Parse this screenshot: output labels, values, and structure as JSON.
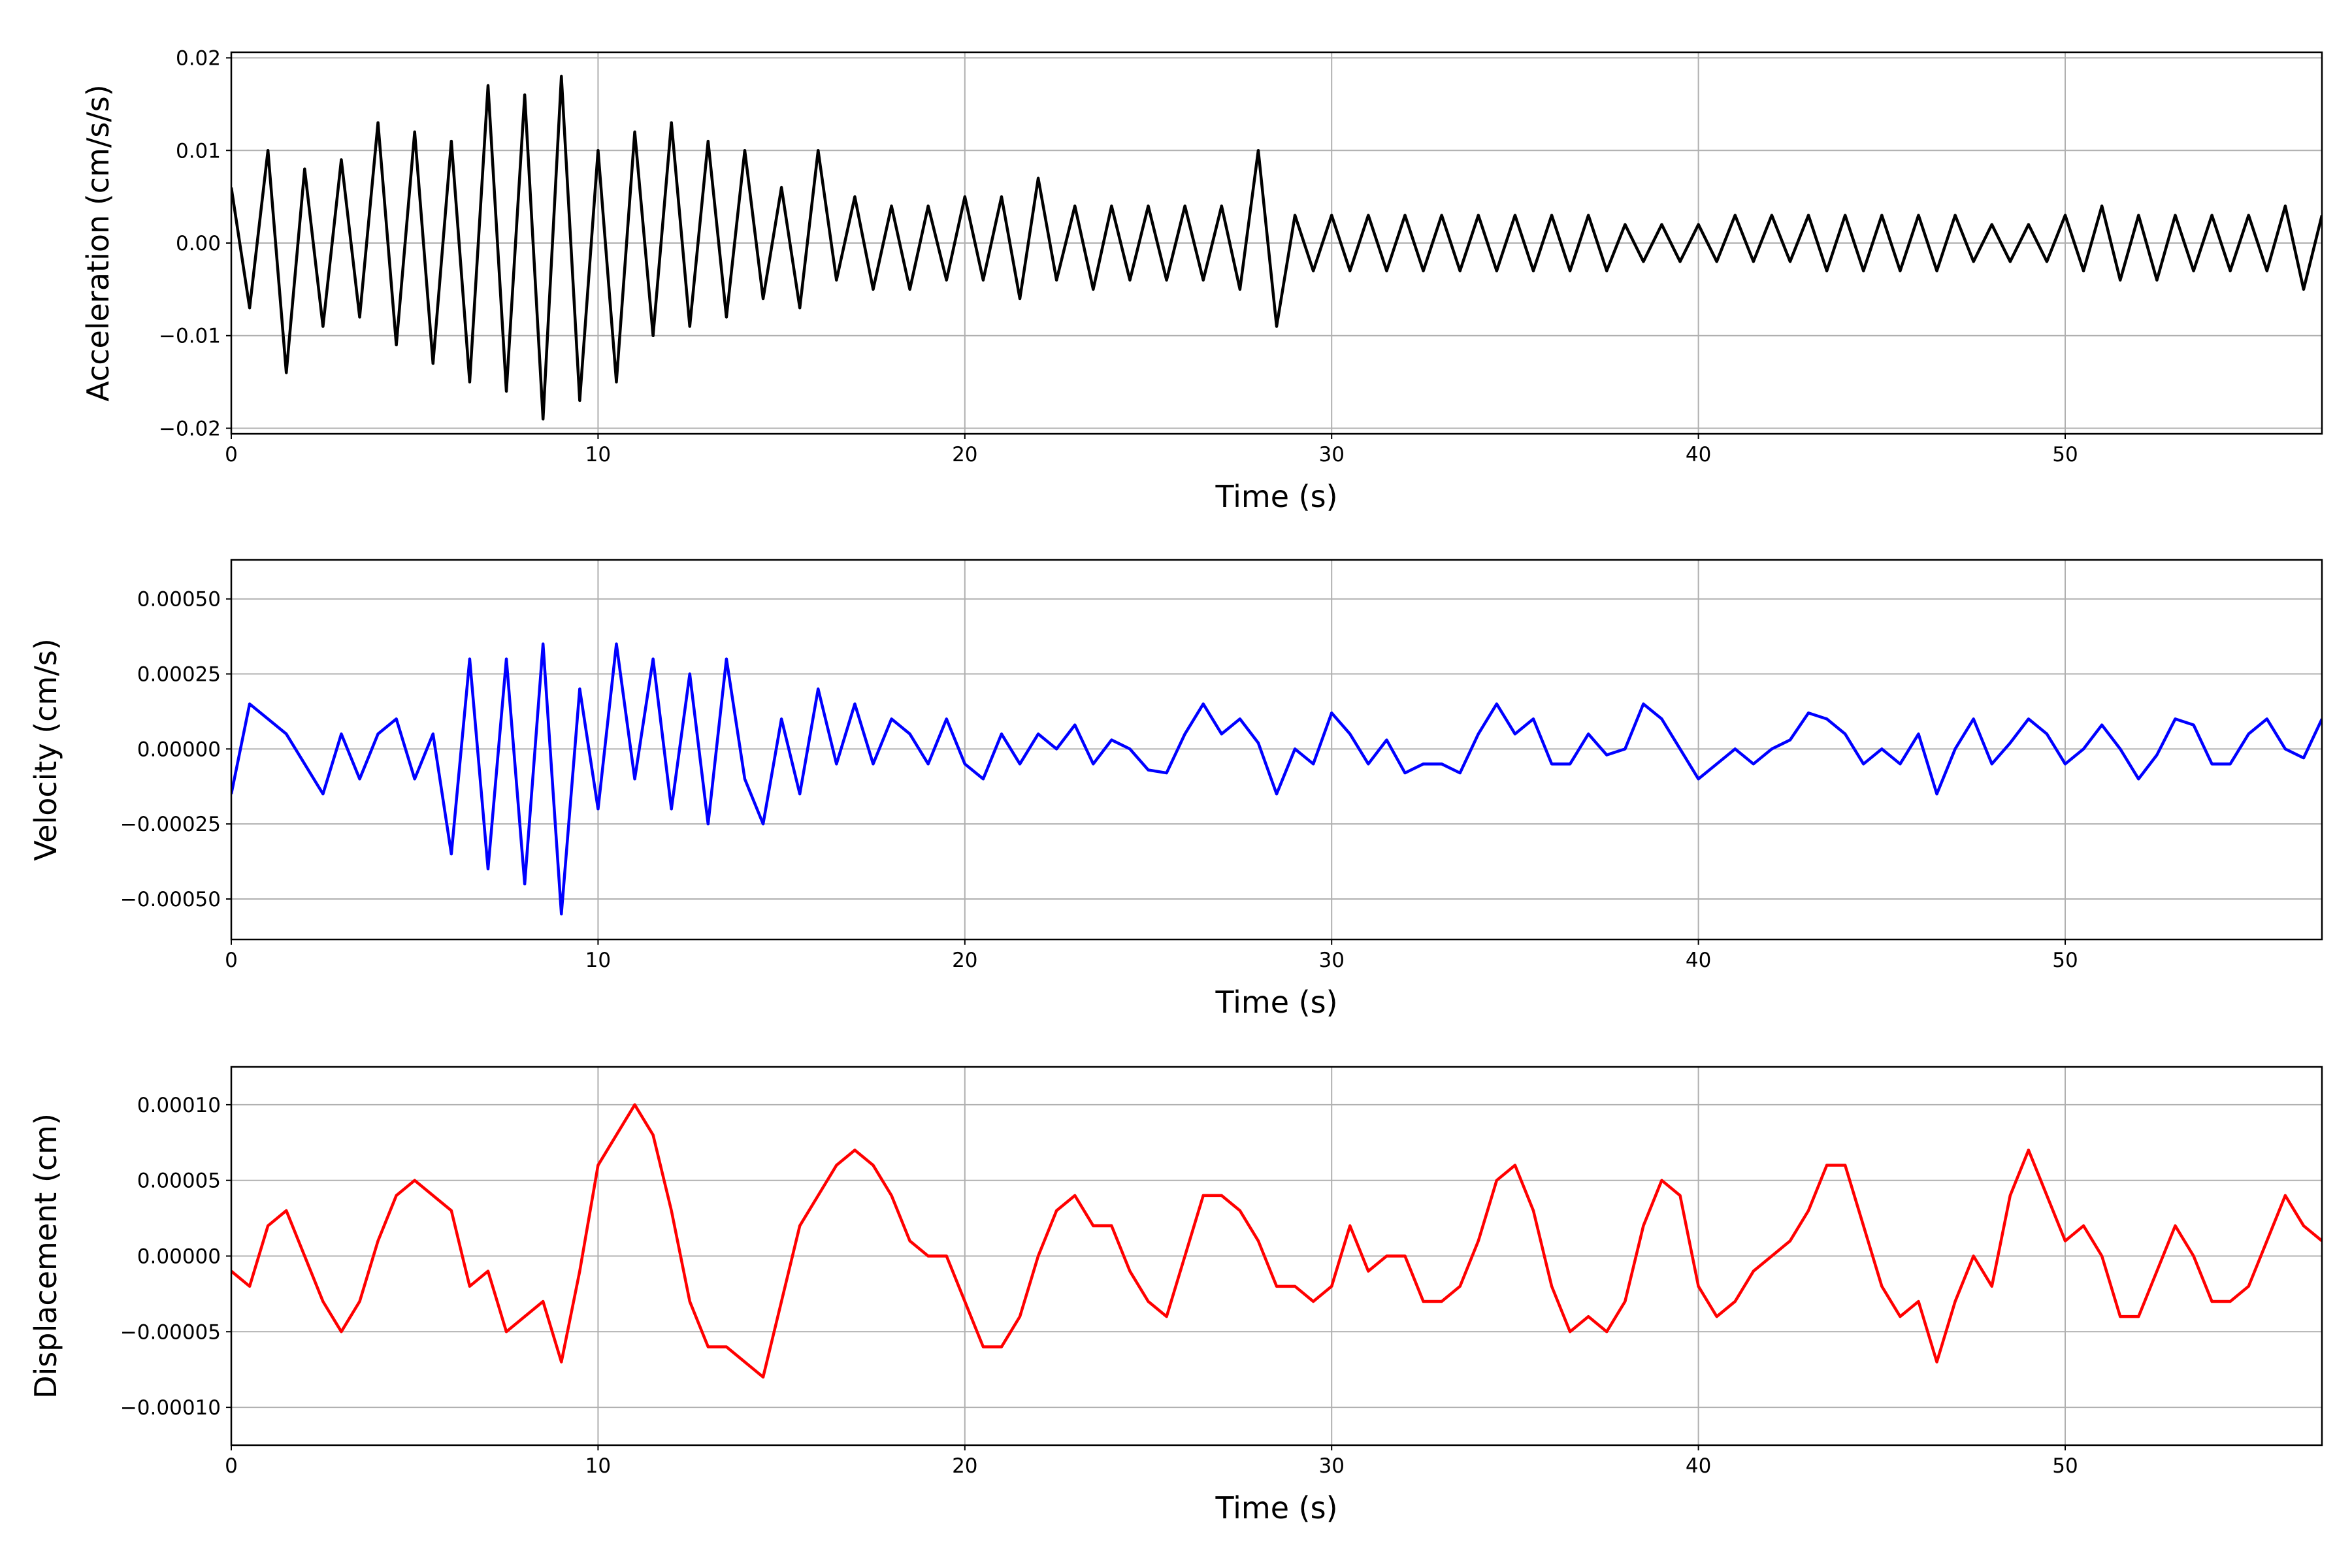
{
  "chart_data": [
    {
      "type": "line",
      "x_label": "Time (s)",
      "y_label": "Acceleration (cm/s/s)",
      "color": "#000000",
      "grid": true,
      "xlim": [
        0,
        57
      ],
      "xticks": [
        0,
        10,
        20,
        30,
        40,
        50
      ],
      "ylim": [
        -0.0206,
        0.0206
      ],
      "yticks": [
        {
          "value": -0.02,
          "label": "−0.02"
        },
        {
          "value": -0.01,
          "label": "−0.01"
        },
        {
          "value": 0,
          "label": "0.00"
        },
        0.01,
        0.02
      ],
      "x": [
        0,
        0.5,
        1,
        1.5,
        2,
        2.5,
        3,
        3.5,
        4,
        4.5,
        5,
        5.5,
        6,
        6.5,
        7,
        7.5,
        8,
        8.5,
        9,
        9.5,
        10,
        10.5,
        11,
        11.5,
        12,
        12.5,
        13,
        13.5,
        14,
        14.5,
        15,
        15.5,
        16,
        16.5,
        17,
        17.5,
        18,
        18.5,
        19,
        19.5,
        20,
        20.5,
        21,
        21.5,
        22,
        22.5,
        23,
        23.5,
        24,
        24.5,
        25,
        25.5,
        26,
        26.5,
        27,
        27.5,
        28,
        28.5,
        29,
        29.5,
        30,
        30.5,
        31,
        31.5,
        32,
        32.5,
        33,
        33.5,
        34,
        34.5,
        35,
        35.5,
        36,
        36.5,
        37,
        37.5,
        38,
        38.5,
        39,
        39.5,
        40,
        40.5,
        41,
        41.5,
        42,
        42.5,
        43,
        43.5,
        44,
        44.5,
        45,
        45.5,
        46,
        46.5,
        47,
        47.5,
        48,
        48.5,
        49,
        49.5,
        50,
        50.5,
        51,
        51.5,
        52,
        52.5,
        53,
        53.5,
        54,
        54.5,
        55,
        55.5,
        56,
        56.5,
        57
      ],
      "values": [
        0.006,
        -0.007,
        0.01,
        -0.014,
        0.008,
        -0.009,
        0.009,
        -0.008,
        0.013,
        -0.011,
        0.012,
        -0.013,
        0.011,
        -0.015,
        0.017,
        -0.016,
        0.016,
        -0.019,
        0.018,
        -0.017,
        0.01,
        -0.015,
        0.012,
        -0.01,
        0.013,
        -0.009,
        0.011,
        -0.008,
        0.01,
        -0.006,
        0.006,
        -0.007,
        0.01,
        -0.004,
        0.005,
        -0.005,
        0.004,
        -0.005,
        0.004,
        -0.004,
        0.005,
        -0.004,
        0.005,
        -0.006,
        0.007,
        -0.004,
        0.004,
        -0.005,
        0.004,
        -0.004,
        0.004,
        -0.004,
        0.004,
        -0.004,
        0.004,
        -0.005,
        0.01,
        -0.009,
        0.003,
        -0.003,
        0.003,
        -0.003,
        0.003,
        -0.003,
        0.003,
        -0.003,
        0.003,
        -0.003,
        0.003,
        -0.003,
        0.003,
        -0.003,
        0.003,
        -0.003,
        0.003,
        -0.003,
        0.002,
        -0.002,
        0.002,
        -0.002,
        0.002,
        -0.002,
        0.003,
        -0.002,
        0.003,
        -0.002,
        0.003,
        -0.003,
        0.003,
        -0.003,
        0.003,
        -0.003,
        0.003,
        -0.003,
        0.003,
        -0.002,
        0.002,
        -0.002,
        0.002,
        -0.002,
        0.003,
        -0.003,
        0.004,
        -0.004,
        0.003,
        -0.004,
        0.003,
        -0.003,
        0.003,
        -0.003,
        0.003,
        -0.003,
        0.004,
        -0.005,
        0.003
      ]
    },
    {
      "type": "line",
      "x_label": "Time (s)",
      "y_label": "Velocity (cm/s)",
      "color": "#0000ff",
      "grid": true,
      "xlim": [
        0,
        57
      ],
      "xticks": [
        0,
        10,
        20,
        30,
        40,
        50
      ],
      "ylim": [
        -0.000635,
        0.00063
      ],
      "yticks": [
        {
          "value": -0.0005,
          "label": "−0.00050"
        },
        {
          "value": -0.00025,
          "label": "−0.00025"
        },
        {
          "value": 0,
          "label": "0.00000"
        },
        {
          "value": 0.00025,
          "label": "0.00025"
        },
        {
          "value": 0.0005,
          "label": "0.00050"
        }
      ],
      "x": [
        0,
        0.5,
        1,
        1.5,
        2,
        2.5,
        3,
        3.5,
        4,
        4.5,
        5,
        5.5,
        6,
        6.5,
        7,
        7.5,
        8,
        8.5,
        9,
        9.5,
        10,
        10.5,
        11,
        11.5,
        12,
        12.5,
        13,
        13.5,
        14,
        14.5,
        15,
        15.5,
        16,
        16.5,
        17,
        17.5,
        18,
        18.5,
        19,
        19.5,
        20,
        20.5,
        21,
        21.5,
        22,
        22.5,
        23,
        23.5,
        24,
        24.5,
        25,
        25.5,
        26,
        26.5,
        27,
        27.5,
        28,
        28.5,
        29,
        29.5,
        30,
        30.5,
        31,
        31.5,
        32,
        32.5,
        33,
        33.5,
        34,
        34.5,
        35,
        35.5,
        36,
        36.5,
        37,
        37.5,
        38,
        38.5,
        39,
        39.5,
        40,
        40.5,
        41,
        41.5,
        42,
        42.5,
        43,
        43.5,
        44,
        44.5,
        45,
        45.5,
        46,
        46.5,
        47,
        47.5,
        48,
        48.5,
        49,
        49.5,
        50,
        50.5,
        51,
        51.5,
        52,
        52.5,
        53,
        53.5,
        54,
        54.5,
        55,
        55.5,
        56,
        56.5,
        57
      ],
      "values": [
        -0.00015,
        0.00015,
        0.0001,
        5e-05,
        -5e-05,
        -0.00015,
        5e-05,
        -0.0001,
        5e-05,
        0.0001,
        -0.0001,
        5e-05,
        -0.00035,
        0.0003,
        -0.0004,
        0.0003,
        -0.00045,
        0.00035,
        -0.00055,
        0.0002,
        -0.0002,
        0.00035,
        -0.0001,
        0.0003,
        -0.0002,
        0.00025,
        -0.00025,
        0.0003,
        -0.0001,
        -0.00025,
        0.0001,
        -0.00015,
        0.0002,
        -5e-05,
        0.00015,
        -5e-05,
        0.0001,
        5e-05,
        -5e-05,
        0.0001,
        -5e-05,
        -0.0001,
        5e-05,
        -5e-05,
        5e-05,
        0,
        8e-05,
        -5e-05,
        3e-05,
        0,
        -7e-05,
        -8e-05,
        5e-05,
        0.00015,
        5e-05,
        0.0001,
        2e-05,
        -0.00015,
        0,
        -5e-05,
        0.00012,
        5e-05,
        -5e-05,
        3e-05,
        -8e-05,
        -5e-05,
        -5e-05,
        -8e-05,
        5e-05,
        0.00015,
        5e-05,
        0.0001,
        -5e-05,
        -5e-05,
        5e-05,
        -2e-05,
        0,
        0.00015,
        0.0001,
        0,
        -0.0001,
        -5e-05,
        0,
        -5e-05,
        0,
        3e-05,
        0.00012,
        0.0001,
        5e-05,
        -5e-05,
        0,
        -5e-05,
        5e-05,
        -0.00015,
        0,
        0.0001,
        -5e-05,
        2e-05,
        0.0001,
        5e-05,
        -5e-05,
        0,
        8e-05,
        0,
        -0.0001,
        -2e-05,
        0.0001,
        8e-05,
        -5e-05,
        -5e-05,
        5e-05,
        0.0001,
        0,
        -3e-05,
        0.0001
      ]
    },
    {
      "type": "line",
      "x_label": "Time (s)",
      "y_label": "Displacement (cm)",
      "color": "#ff0000",
      "grid": true,
      "xlim": [
        0,
        57
      ],
      "xticks": [
        0,
        10,
        20,
        30,
        40,
        50
      ],
      "ylim": [
        -0.000125,
        0.000125
      ],
      "yticks": [
        {
          "value": -0.0001,
          "label": "−0.00010"
        },
        {
          "value": -5e-05,
          "label": "−0.00005"
        },
        {
          "value": 0,
          "label": "0.00000"
        },
        {
          "value": 5e-05,
          "label": "0.00005"
        },
        {
          "value": 0.0001,
          "label": "0.00010"
        }
      ],
      "x": [
        0,
        0.5,
        1,
        1.5,
        2,
        2.5,
        3,
        3.5,
        4,
        4.5,
        5,
        5.5,
        6,
        6.5,
        7,
        7.5,
        8,
        8.5,
        9,
        9.5,
        10,
        10.5,
        11,
        11.5,
        12,
        12.5,
        13,
        13.5,
        14,
        14.5,
        15,
        15.5,
        16,
        16.5,
        17,
        17.5,
        18,
        18.5,
        19,
        19.5,
        20,
        20.5,
        21,
        21.5,
        22,
        22.5,
        23,
        23.5,
        24,
        24.5,
        25,
        25.5,
        26,
        26.5,
        27,
        27.5,
        28,
        28.5,
        29,
        29.5,
        30,
        30.5,
        31,
        31.5,
        32,
        32.5,
        33,
        33.5,
        34,
        34.5,
        35,
        35.5,
        36,
        36.5,
        37,
        37.5,
        38,
        38.5,
        39,
        39.5,
        40,
        40.5,
        41,
        41.5,
        42,
        42.5,
        43,
        43.5,
        44,
        44.5,
        45,
        45.5,
        46,
        46.5,
        47,
        47.5,
        48,
        48.5,
        49,
        49.5,
        50,
        50.5,
        51,
        51.5,
        52,
        52.5,
        53,
        53.5,
        54,
        54.5,
        55,
        55.5,
        56,
        56.5,
        57
      ],
      "values": [
        -1e-05,
        -2e-05,
        2e-05,
        3e-05,
        0,
        -3e-05,
        -5e-05,
        -3e-05,
        1e-05,
        4e-05,
        5e-05,
        4e-05,
        3e-05,
        -2e-05,
        -1e-05,
        -5e-05,
        -4e-05,
        -3e-05,
        -7e-05,
        -1e-05,
        6e-05,
        8e-05,
        0.0001,
        8e-05,
        3e-05,
        -3e-05,
        -6e-05,
        -6e-05,
        -7e-05,
        -8e-05,
        -3e-05,
        2e-05,
        4e-05,
        6e-05,
        7e-05,
        6e-05,
        4e-05,
        1e-05,
        0,
        0,
        -3e-05,
        -6e-05,
        -6e-05,
        -4e-05,
        0,
        3e-05,
        4e-05,
        2e-05,
        2e-05,
        -1e-05,
        -3e-05,
        -4e-05,
        0,
        4e-05,
        4e-05,
        3e-05,
        1e-05,
        -2e-05,
        -2e-05,
        -3e-05,
        -2e-05,
        2e-05,
        -1e-05,
        0,
        0,
        -3e-05,
        -3e-05,
        -2e-05,
        1e-05,
        5e-05,
        6e-05,
        3e-05,
        -2e-05,
        -5e-05,
        -4e-05,
        -5e-05,
        -3e-05,
        2e-05,
        5e-05,
        4e-05,
        -2e-05,
        -4e-05,
        -3e-05,
        -1e-05,
        0,
        1e-05,
        3e-05,
        6e-05,
        6e-05,
        2e-05,
        -2e-05,
        -4e-05,
        -3e-05,
        -7e-05,
        -3e-05,
        0,
        -2e-05,
        4e-05,
        7e-05,
        4e-05,
        1e-05,
        2e-05,
        0,
        -4e-05,
        -4e-05,
        -1e-05,
        2e-05,
        0,
        -3e-05,
        -3e-05,
        -2e-05,
        1e-05,
        4e-05,
        2e-05,
        1e-05
      ]
    }
  ]
}
